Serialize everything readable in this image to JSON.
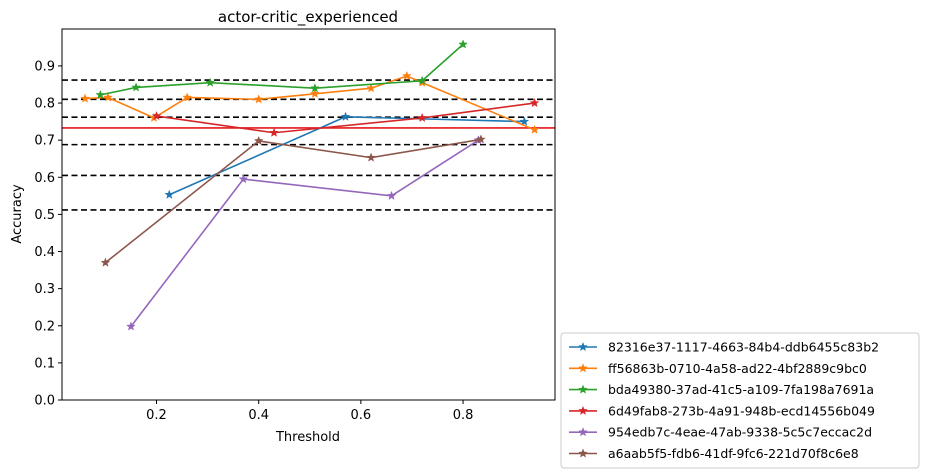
{
  "chart_data": {
    "type": "line",
    "title": "actor-critic_experienced",
    "xlabel": "Threshold",
    "ylabel": "Accuracy",
    "xlim": [
      0.015,
      0.98
    ],
    "ylim": [
      0.0,
      0.9995
    ],
    "xticks": [
      0.2,
      0.4,
      0.6,
      0.8
    ],
    "xtick_labels": [
      "0.2",
      "0.4",
      "0.6",
      "0.8"
    ],
    "yticks": [
      0.0,
      0.1,
      0.2,
      0.3,
      0.4,
      0.5,
      0.6,
      0.7,
      0.8,
      0.9
    ],
    "ytick_labels": [
      "0.0",
      "0.1",
      "0.2",
      "0.3",
      "0.4",
      "0.5",
      "0.6",
      "0.7",
      "0.8",
      "0.9"
    ],
    "grid": false,
    "legend_position": "outside-bottom-right",
    "series": [
      {
        "name": "82316e37-1117-4663-84b4-ddb6455c83b2",
        "color": "#1f77b4",
        "x": [
          0.225,
          0.57,
          0.92
        ],
        "y": [
          0.553,
          0.763,
          0.75
        ]
      },
      {
        "name": "ff56863b-0710-4a58-ad22-4bf2889c9bc0",
        "color": "#ff7f0e",
        "x": [
          0.06,
          0.105,
          0.195,
          0.26,
          0.4,
          0.51,
          0.62,
          0.69,
          0.72,
          0.94
        ],
        "y": [
          0.812,
          0.815,
          0.76,
          0.815,
          0.81,
          0.825,
          0.84,
          0.873,
          0.855,
          0.728
        ]
      },
      {
        "name": "bda49380-37ad-41c5-a109-7fa198a7691a",
        "color": "#2ca02c",
        "x": [
          0.09,
          0.16,
          0.305,
          0.51,
          0.72,
          0.8
        ],
        "y": [
          0.822,
          0.842,
          0.855,
          0.84,
          0.86,
          0.958
        ]
      },
      {
        "name": "6d49fab8-273b-4a91-948b-ecd14556b049",
        "color": "#d62728",
        "x": [
          0.2,
          0.43,
          0.72,
          0.94
        ],
        "y": [
          0.765,
          0.72,
          0.76,
          0.8
        ]
      },
      {
        "name": "954edb7c-4eae-47ab-9338-5c5c7eccac2d",
        "color": "#9467bd",
        "x": [
          0.15,
          0.37,
          0.66,
          0.83
        ],
        "y": [
          0.198,
          0.595,
          0.55,
          0.7
        ]
      },
      {
        "name": "a6aab5f5-fdb6-41df-9fc6-221d70f8c6e8",
        "color": "#8c564b",
        "x": [
          0.1,
          0.4,
          0.62,
          0.835
        ],
        "y": [
          0.37,
          0.698,
          0.653,
          0.702
        ]
      }
    ],
    "hlines": [
      {
        "y": 0.862,
        "color": "#000000",
        "style": "dashed"
      },
      {
        "y": 0.81,
        "color": "#000000",
        "style": "dashed"
      },
      {
        "y": 0.762,
        "color": "#000000",
        "style": "dashed"
      },
      {
        "y": 0.688,
        "color": "#000000",
        "style": "dashed"
      },
      {
        "y": 0.605,
        "color": "#000000",
        "style": "dashed"
      },
      {
        "y": 0.512,
        "color": "#000000",
        "style": "dashed"
      },
      {
        "y": 0.733,
        "color": "#e41a1c",
        "style": "solid"
      }
    ]
  }
}
